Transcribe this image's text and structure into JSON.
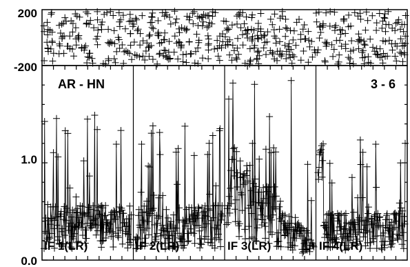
{
  "chart_data": [
    {
      "type": "scatter",
      "panel": "phase",
      "ylim": [
        -200,
        200
      ],
      "y_ticks": [
        "200",
        "-200"
      ],
      "grid": false,
      "marker": "plus",
      "description": "phase vs channel, scattered uniformly between -200 and 200"
    },
    {
      "type": "scatter",
      "panel": "amplitude",
      "ylim": [
        0.0,
        2.0
      ],
      "y_ticks": [
        "1.0",
        "0.0"
      ],
      "grid": false,
      "marker": "plus",
      "annotations": {
        "baseline": "AR - HN",
        "corr": "3 - 6"
      },
      "subbands": [
        {
          "label": "IF 1(LR)",
          "typical_amp": 0.45,
          "peak_amp": 1.5
        },
        {
          "label": "IF 2(LR)",
          "typical_amp": 0.45,
          "peak_amp": 1.45
        },
        {
          "label": "IF 3(LR)",
          "typical_amp": 0.75,
          "peak_amp": 1.9
        },
        {
          "label": "IF 4(LR)",
          "typical_amp": 0.4,
          "peak_amp": 1.25
        }
      ]
    }
  ]
}
